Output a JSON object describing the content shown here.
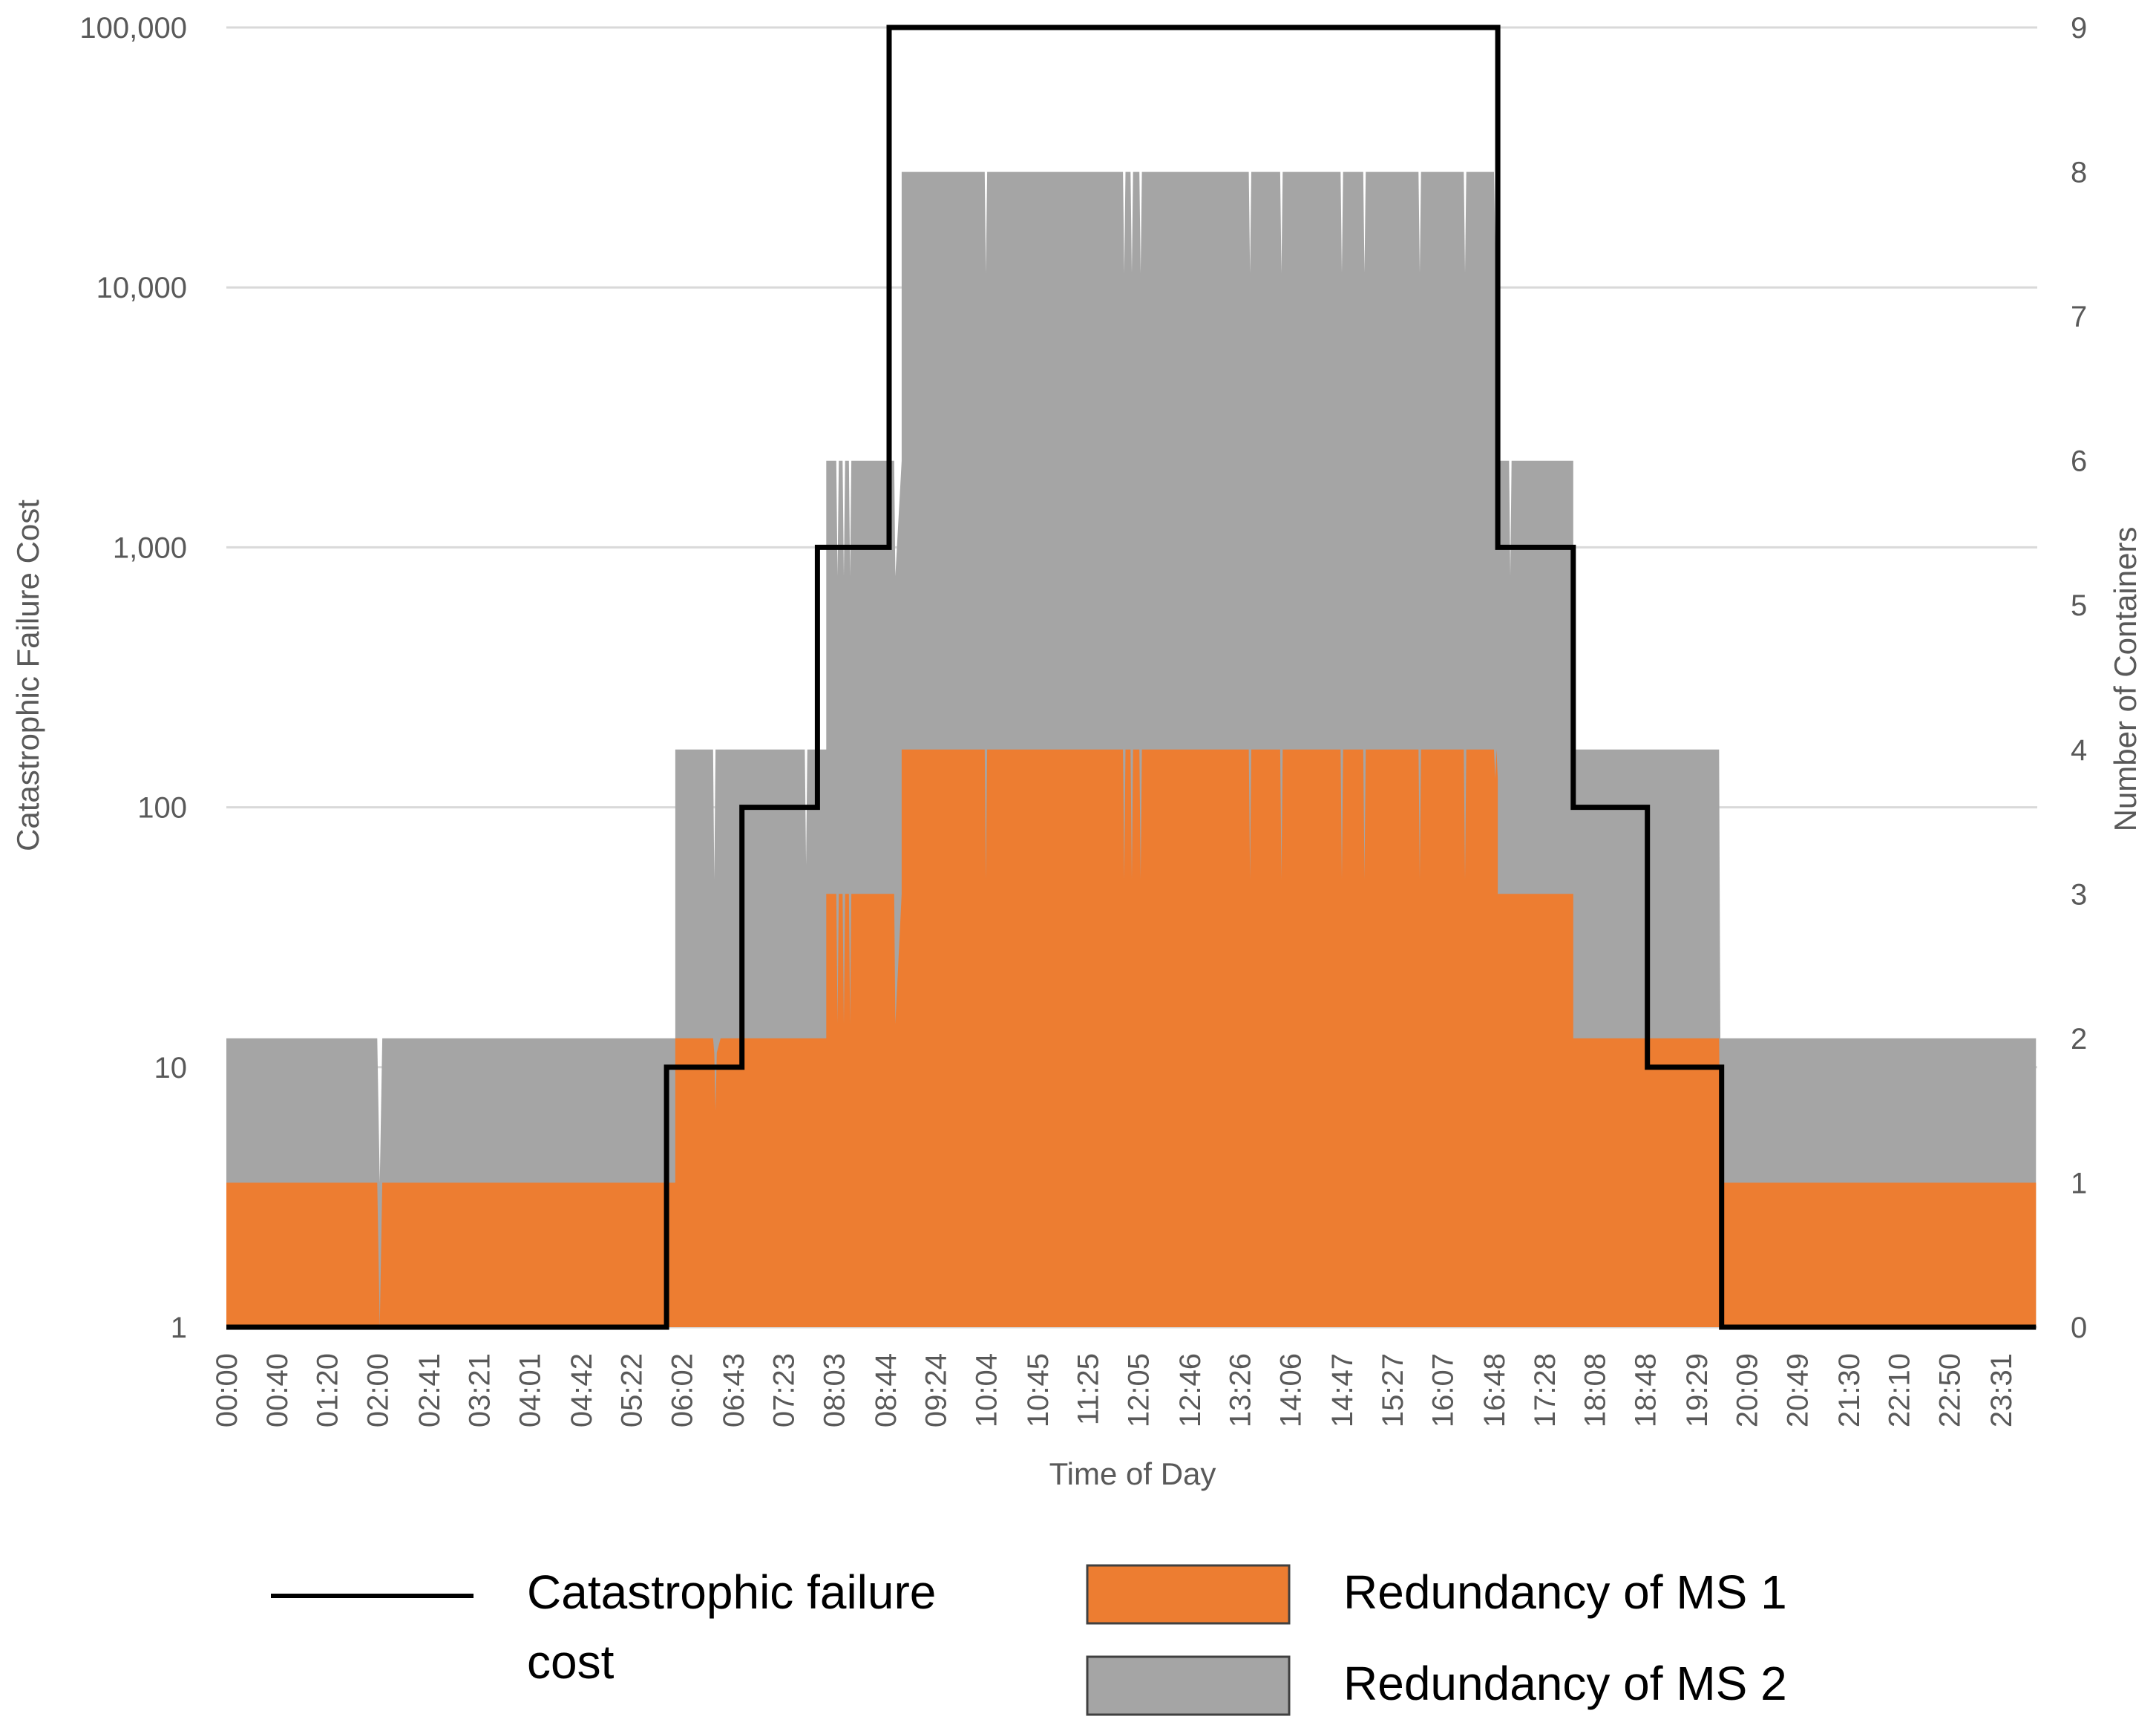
{
  "chart_data": {
    "type": "area",
    "title": "",
    "xlabel": "Time of Day",
    "ylabel_left": "Catastrophic Failure Cost",
    "ylabel_right": "Number of Containers",
    "y_left_scale": "log",
    "y_left_ticks": [
      "1",
      "10",
      "100",
      "1,000",
      "10,000",
      "100,000"
    ],
    "y_left_range": [
      1,
      100000
    ],
    "y_right_ticks": [
      "0",
      "1",
      "2",
      "3",
      "4",
      "5",
      "6",
      "7",
      "8",
      "9"
    ],
    "y_right_range": [
      0,
      9
    ],
    "x_range_hours": [
      0,
      24
    ],
    "x_tick_labels": [
      "00:00",
      "00:40",
      "01:20",
      "02:00",
      "02:41",
      "03:21",
      "04:01",
      "04:42",
      "05:22",
      "06:02",
      "06:43",
      "07:23",
      "08:03",
      "08:44",
      "09:24",
      "10:04",
      "10:45",
      "11:25",
      "12:05",
      "12:46",
      "13:26",
      "14:06",
      "14:47",
      "15:27",
      "16:07",
      "16:48",
      "17:28",
      "18:08",
      "18:48",
      "19:29",
      "20:09",
      "20:49",
      "21:30",
      "22:10",
      "22:50",
      "23:31"
    ],
    "grid": "horizontal",
    "legend_position": "bottom",
    "legend": {
      "line_label": "Catastrophic failure cost",
      "ms1_label": "Redundancy of MS 1",
      "ms2_label": "Redundancy of MS 2"
    },
    "colors": {
      "ms1": "#ED7D31",
      "ms2": "#A5A5A5",
      "line": "#000000",
      "grid": "#D9D9D9",
      "text": "#595959"
    },
    "series": [
      {
        "name": "Catastrophic failure cost",
        "axis": "left",
        "kind": "step-line",
        "x": [
          "00:00",
          "05:50",
          "05:50",
          "06:50",
          "06:50",
          "07:50",
          "07:50",
          "08:47",
          "08:47",
          "16:51",
          "16:51",
          "17:51",
          "17:51",
          "18:50",
          "18:50",
          "19:49",
          "19:49",
          "23:59"
        ],
        "values": [
          1,
          1,
          10,
          10,
          100,
          100,
          1000,
          1000,
          100000,
          100000,
          1000,
          1000,
          100,
          100,
          10,
          10,
          1,
          1
        ]
      },
      {
        "name": "Redundancy of MS 1",
        "axis": "right",
        "kind": "area",
        "x": [
          "00:00",
          "02:00",
          "02:02",
          "02:04",
          "05:57",
          "05:57",
          "06:27",
          "06:28",
          "06:29",
          "06:30",
          "06:33",
          "06:50",
          "06:50",
          "07:57",
          "07:57",
          "08:05",
          "08:06",
          "08:07",
          "08:10",
          "08:11",
          "08:12",
          "08:15",
          "08:16",
          "08:17",
          "08:51",
          "08:52",
          "08:57",
          "08:57",
          "10:03",
          "10:04",
          "10:05",
          "11:53",
          "11:54",
          "11:55",
          "11:59",
          "12:00",
          "12:01",
          "12:06",
          "12:07",
          "12:08",
          "13:33",
          "13:34",
          "13:35",
          "13:58",
          "13:59",
          "14:00",
          "14:46",
          "14:47",
          "14:48",
          "15:04",
          "15:05",
          "15:06",
          "15:48",
          "15:49",
          "15:50",
          "16:24",
          "16:25",
          "16:26",
          "16:48",
          "16:49",
          "16:50",
          "16:51",
          "16:51",
          "17:51",
          "17:51",
          "19:47",
          "19:48",
          "23:59"
        ],
        "values": [
          1,
          1,
          0,
          1,
          1,
          2,
          2,
          1.9,
          1.5,
          1.9,
          2,
          2,
          2,
          2,
          3,
          3,
          2.1,
          3,
          3,
          2.1,
          3,
          3,
          2.1,
          3,
          3,
          2.1,
          3,
          4,
          4,
          3.1,
          4,
          4,
          3.1,
          4,
          4,
          3.1,
          4,
          4,
          3.1,
          4,
          4,
          3.1,
          4,
          4,
          3.1,
          4,
          4,
          3.1,
          4,
          4,
          3.1,
          4,
          4,
          3.1,
          4,
          4,
          3.1,
          4,
          4,
          3.8,
          4,
          3.8,
          3,
          3,
          2,
          2,
          1,
          1
        ]
      },
      {
        "name": "Redundancy of MS 2",
        "axis": "right",
        "kind": "stacked-total",
        "x": [
          "00:00",
          "02:00",
          "02:02",
          "02:04",
          "05:57",
          "05:57",
          "06:27",
          "06:28",
          "06:29",
          "06:33",
          "06:36",
          "07:40",
          "07:41",
          "07:42",
          "07:57",
          "07:57",
          "08:05",
          "08:06",
          "08:07",
          "08:10",
          "08:11",
          "08:12",
          "08:15",
          "08:16",
          "08:17",
          "08:51",
          "08:52",
          "08:57",
          "08:57",
          "10:03",
          "10:04",
          "10:05",
          "11:53",
          "11:54",
          "11:55",
          "11:59",
          "12:00",
          "12:01",
          "12:06",
          "12:07",
          "12:08",
          "13:33",
          "13:34",
          "13:35",
          "13:58",
          "13:59",
          "14:00",
          "14:46",
          "14:47",
          "14:48",
          "15:04",
          "15:05",
          "15:06",
          "15:48",
          "15:49",
          "15:50",
          "16:24",
          "16:25",
          "16:26",
          "16:48",
          "16:49",
          "16:50",
          "16:51",
          "16:51",
          "17:00",
          "17:01",
          "17:02",
          "17:51",
          "17:51",
          "19:47",
          "19:48",
          "23:59"
        ],
        "values": [
          2,
          2,
          1,
          2,
          2,
          4,
          4,
          3.1,
          4,
          4,
          4,
          4,
          3.2,
          4,
          4,
          6,
          6,
          5.2,
          6,
          6,
          5.2,
          6,
          6,
          5.2,
          6,
          6,
          5.2,
          6,
          8,
          8,
          7.3,
          8,
          8,
          7.3,
          8,
          8,
          7.3,
          8,
          8,
          7.3,
          8,
          8,
          7.3,
          8,
          8,
          7.3,
          8,
          8,
          7.3,
          8,
          8,
          7.3,
          8,
          8,
          7.3,
          8,
          8,
          7.3,
          8,
          8,
          7.5,
          8,
          7.5,
          6,
          6,
          5.2,
          6,
          6,
          4,
          4,
          2,
          2
        ]
      }
    ]
  }
}
